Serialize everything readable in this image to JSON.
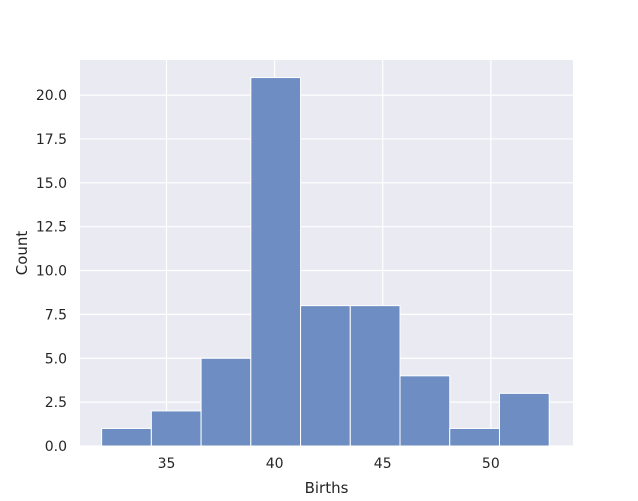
{
  "chart_data": {
    "type": "bar",
    "subtype": "histogram",
    "title": "",
    "xlabel": "Births",
    "ylabel": "Count",
    "xlim": [
      31.0,
      53.8
    ],
    "ylim": [
      0,
      22
    ],
    "xticks": [
      35,
      40,
      45,
      50
    ],
    "yticks": [
      0.0,
      2.5,
      5.0,
      7.5,
      10.0,
      12.5,
      15.0,
      17.5,
      20.0
    ],
    "ytick_labels": [
      "0.0",
      "2.5",
      "5.0",
      "7.5",
      "10.0",
      "12.5",
      "15.0",
      "17.5",
      "20.0"
    ],
    "bins": [
      {
        "start": 32.0,
        "end": 34.3,
        "count": 1
      },
      {
        "start": 34.3,
        "end": 36.6,
        "count": 2
      },
      {
        "start": 36.6,
        "end": 38.9,
        "count": 5
      },
      {
        "start": 38.9,
        "end": 41.2,
        "count": 21
      },
      {
        "start": 41.2,
        "end": 43.5,
        "count": 8
      },
      {
        "start": 43.5,
        "end": 45.8,
        "count": 8
      },
      {
        "start": 45.8,
        "end": 48.1,
        "count": 4
      },
      {
        "start": 48.1,
        "end": 50.4,
        "count": 1
      },
      {
        "start": 50.4,
        "end": 52.7,
        "count": 3
      }
    ],
    "grid": true,
    "colors": {
      "bar_fill": "#6e8ec3",
      "bar_edge": "#ffffff",
      "plot_background": "#eaeaf2",
      "grid": "#ffffff"
    }
  }
}
